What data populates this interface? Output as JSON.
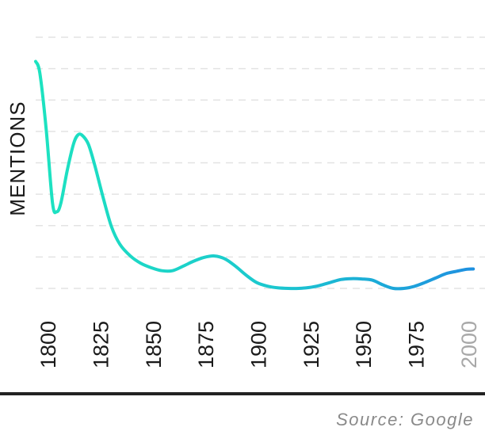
{
  "chart_data": {
    "type": "line",
    "title": "",
    "xlabel": "",
    "ylabel": "MENTIONS",
    "x": [
      1800,
      1802,
      1805,
      1808,
      1810,
      1812,
      1815,
      1818,
      1820,
      1822,
      1825,
      1828,
      1832,
      1836,
      1840,
      1845,
      1850,
      1855,
      1860,
      1865,
      1870,
      1875,
      1880,
      1885,
      1890,
      1895,
      1900,
      1905,
      1910,
      1915,
      1920,
      1925,
      1930,
      1935,
      1940,
      1945,
      1950,
      1955,
      1960,
      1965,
      1970,
      1975,
      1980,
      1985,
      1990,
      1995,
      2000,
      2005,
      2008
    ],
    "values": [
      7.7,
      7.3,
      5.4,
      2.9,
      2.6,
      2.9,
      4.0,
      4.9,
      5.2,
      5.2,
      4.9,
      4.2,
      3.1,
      2.1,
      1.5,
      1.1,
      0.85,
      0.7,
      0.6,
      0.6,
      0.75,
      0.92,
      1.05,
      1.1,
      1.0,
      0.75,
      0.45,
      0.2,
      0.08,
      0.02,
      0.0,
      0.0,
      0.03,
      0.1,
      0.2,
      0.3,
      0.33,
      0.32,
      0.28,
      0.12,
      0.0,
      0.0,
      0.07,
      0.2,
      0.35,
      0.5,
      0.58,
      0.65,
      0.66
    ],
    "ylim": [
      0,
      8.5
    ],
    "xlim": [
      1800,
      2008
    ],
    "x_ticks": [
      1800,
      1825,
      1850,
      1875,
      1900,
      1925,
      1950,
      1975,
      2000
    ],
    "dim_ticks": [
      2000
    ],
    "grid": true,
    "gridline_count": 9,
    "colors": {
      "line_start": "#1de3c0",
      "line_mid": "#1bc7cf",
      "line_end": "#1e90e0",
      "grid": "#e3e3e3",
      "baseline": "#222222"
    }
  },
  "footer": {
    "source": "Source: Google"
  }
}
